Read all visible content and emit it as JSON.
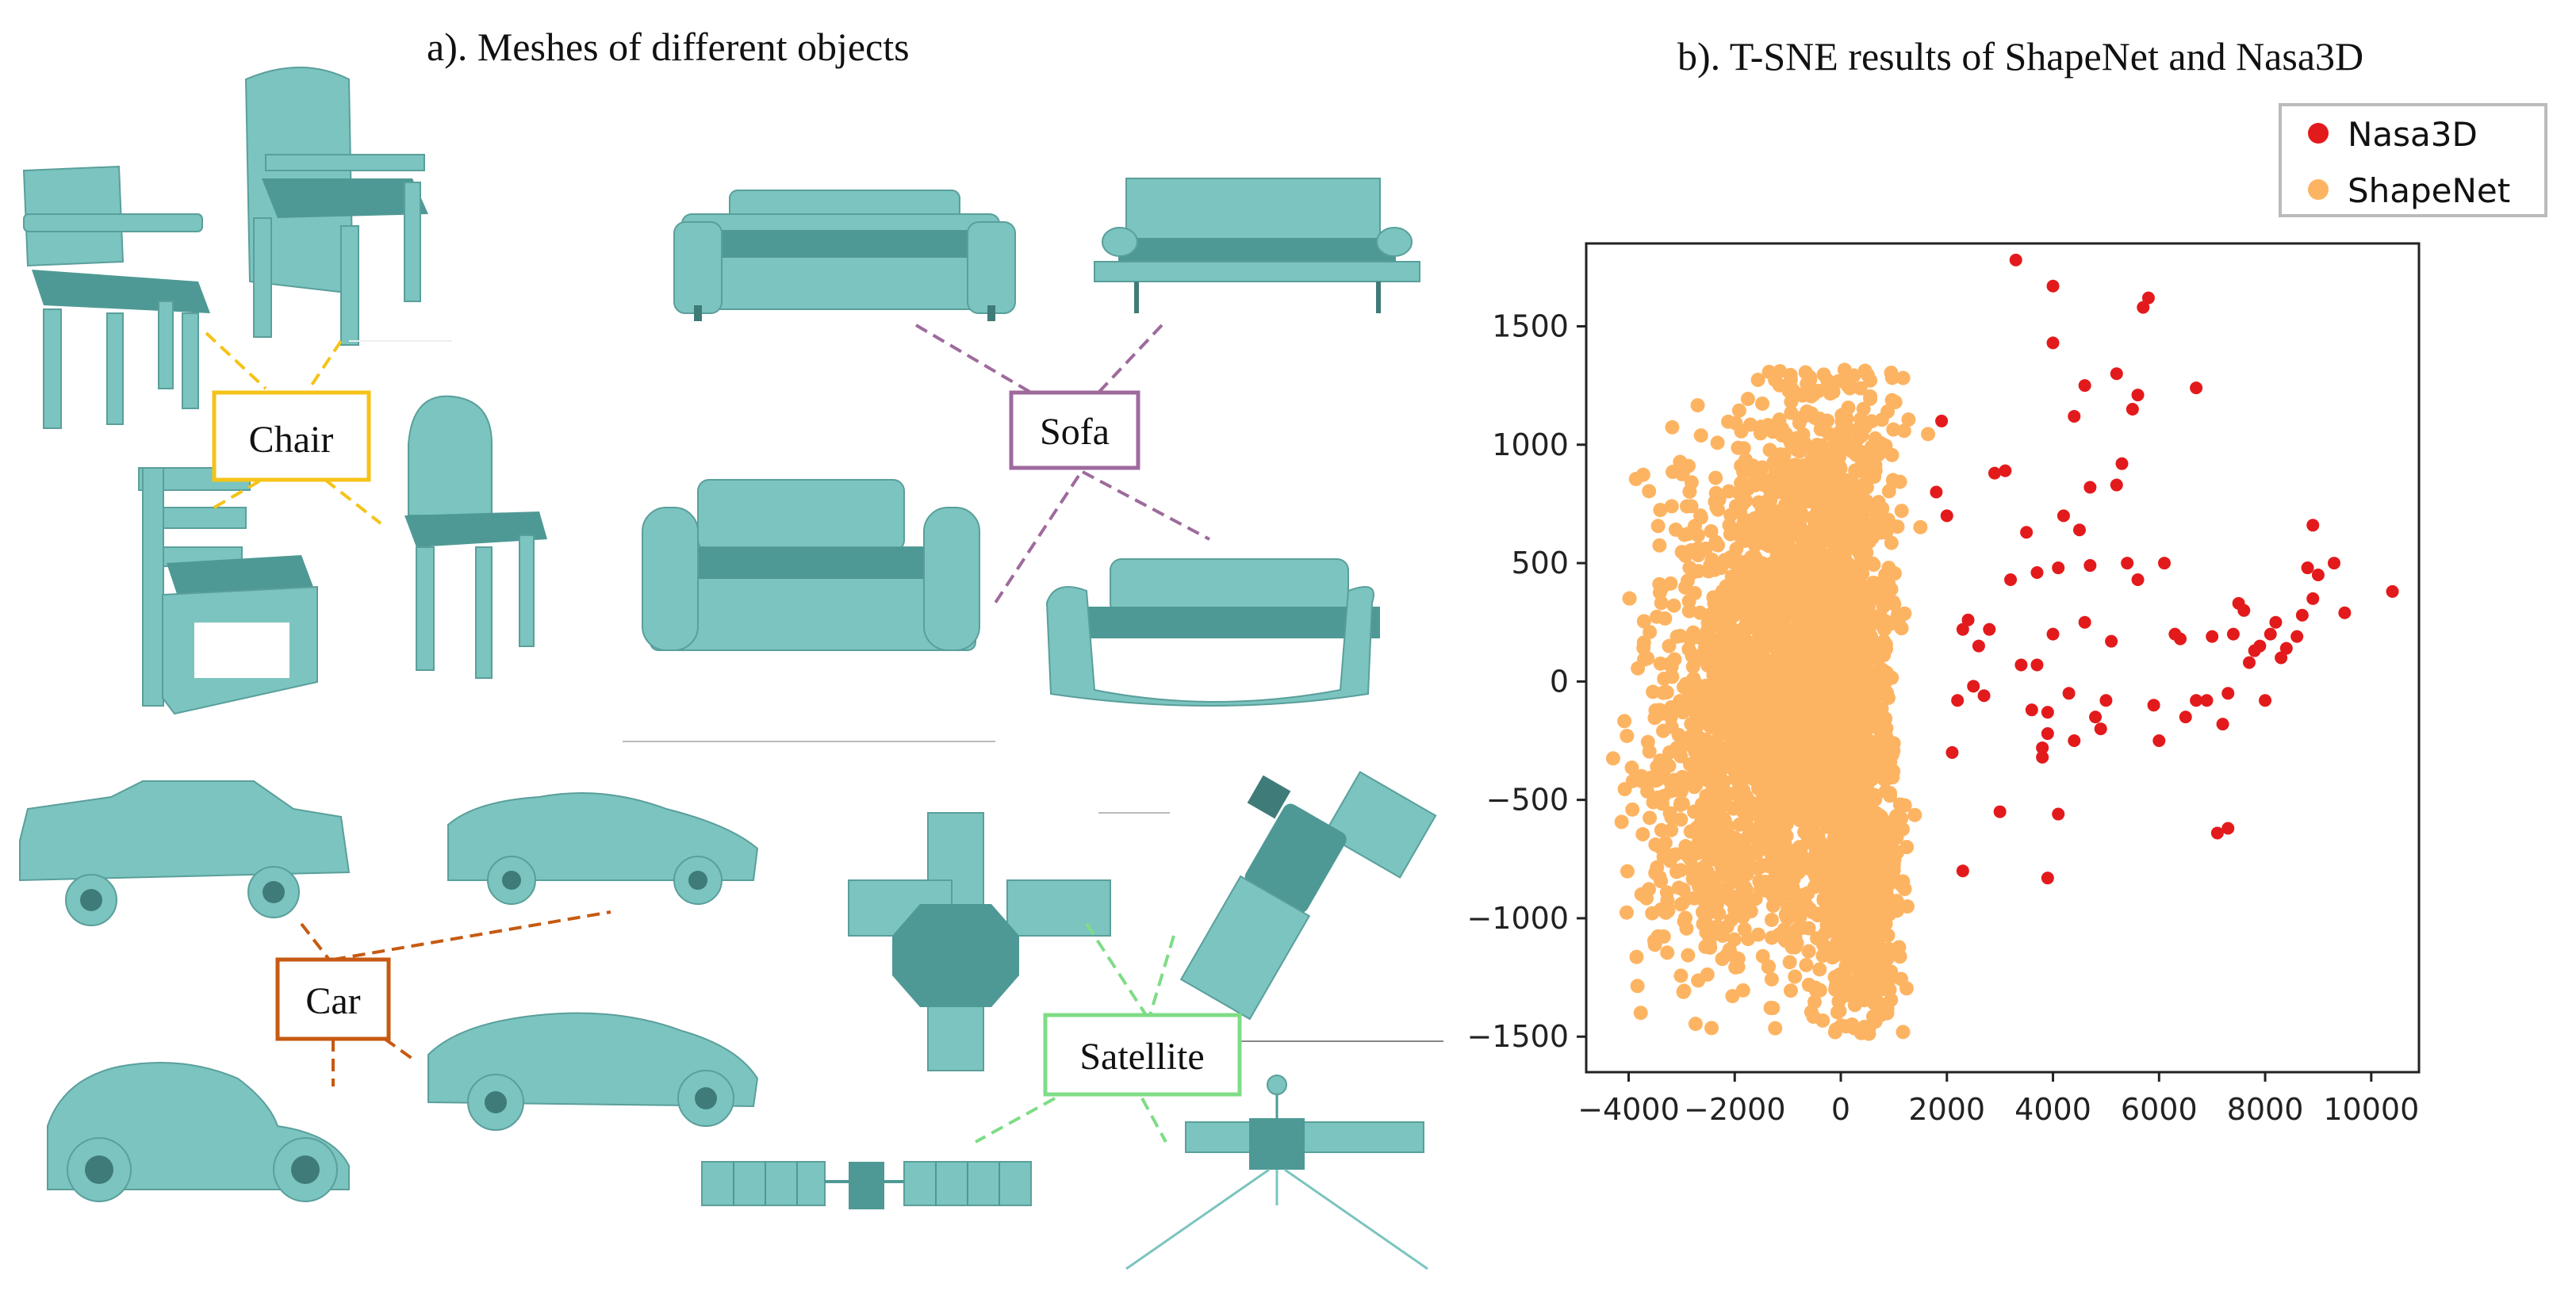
{
  "panel_a": {
    "caption": "a).  Meshes of different objects",
    "labels": {
      "chair": "Chair",
      "sofa": "Sofa",
      "car": "Car",
      "satellite": "Satellite"
    },
    "colors": {
      "mesh": "#7bc4c0",
      "mesh_dark": "#4e9995",
      "chair": "#f5c318",
      "sofa": "#9e6a9c",
      "car": "#c65a12",
      "satellite": "#7fdc86"
    }
  },
  "panel_b": {
    "caption": "b). T-SNE results of ShapeNet and Nasa3D"
  },
  "chart_data": {
    "type": "scatter",
    "title": "b). T-SNE results of ShapeNet and Nasa3D",
    "xlabel": "",
    "ylabel": "",
    "xlim": [
      -4800,
      10900
    ],
    "ylim": [
      -1650,
      1850
    ],
    "xticks": [
      -4000,
      -2000,
      0,
      2000,
      4000,
      6000,
      8000,
      10000
    ],
    "yticks": [
      -1500,
      -1000,
      -500,
      0,
      500,
      1000,
      1500
    ],
    "xtick_labels": [
      "−4000",
      "−2000",
      "0",
      "2000",
      "4000",
      "6000",
      "8000",
      "10000"
    ],
    "ytick_labels": [
      "−1500",
      "−1000",
      "−500",
      "0",
      "500",
      "1000",
      "1500"
    ],
    "grid": false,
    "legend_position": "top-right",
    "series": [
      {
        "name": "Nasa3D",
        "color": "#e31a1c",
        "points": [
          [
            10400,
            380
          ],
          [
            9500,
            290
          ],
          [
            9300,
            500
          ],
          [
            9000,
            450
          ],
          [
            8900,
            660
          ],
          [
            8900,
            350
          ],
          [
            8800,
            480
          ],
          [
            8700,
            280
          ],
          [
            8600,
            190
          ],
          [
            8400,
            140
          ],
          [
            8300,
            100
          ],
          [
            8200,
            250
          ],
          [
            8100,
            200
          ],
          [
            8000,
            -80
          ],
          [
            7900,
            150
          ],
          [
            7800,
            130
          ],
          [
            7700,
            80
          ],
          [
            7600,
            300
          ],
          [
            7500,
            330
          ],
          [
            7400,
            200
          ],
          [
            7300,
            -50
          ],
          [
            7200,
            -180
          ],
          [
            7100,
            -640
          ],
          [
            7300,
            -620
          ],
          [
            7000,
            190
          ],
          [
            6900,
            -80
          ],
          [
            6700,
            1240
          ],
          [
            6500,
            -150
          ],
          [
            6400,
            180
          ],
          [
            6300,
            200
          ],
          [
            6100,
            500
          ],
          [
            6000,
            -250
          ],
          [
            5900,
            -100
          ],
          [
            5800,
            1620
          ],
          [
            5700,
            1580
          ],
          [
            5600,
            1210
          ],
          [
            5600,
            430
          ],
          [
            5500,
            1150
          ],
          [
            5400,
            500
          ],
          [
            5300,
            920
          ],
          [
            5200,
            1300
          ],
          [
            5200,
            830
          ],
          [
            5100,
            170
          ],
          [
            5000,
            -80
          ],
          [
            4900,
            -200
          ],
          [
            4800,
            -150
          ],
          [
            4700,
            820
          ],
          [
            4700,
            490
          ],
          [
            4600,
            1250
          ],
          [
            4600,
            250
          ],
          [
            4500,
            640
          ],
          [
            4400,
            1120
          ],
          [
            4300,
            -50
          ],
          [
            4200,
            700
          ],
          [
            4100,
            480
          ],
          [
            4100,
            -560
          ],
          [
            4000,
            1430
          ],
          [
            4000,
            1670
          ],
          [
            4000,
            200
          ],
          [
            3900,
            -130
          ],
          [
            3900,
            -220
          ],
          [
            3800,
            -280
          ],
          [
            3800,
            -320
          ],
          [
            3700,
            460
          ],
          [
            3700,
            70
          ],
          [
            3600,
            -120
          ],
          [
            3500,
            630
          ],
          [
            3400,
            70
          ],
          [
            3300,
            1780
          ],
          [
            3200,
            430
          ],
          [
            3100,
            890
          ],
          [
            3000,
            -550
          ],
          [
            2900,
            880
          ],
          [
            2800,
            220
          ],
          [
            2700,
            -60
          ],
          [
            2600,
            150
          ],
          [
            2500,
            -20
          ],
          [
            2400,
            260
          ],
          [
            2300,
            -800
          ],
          [
            2300,
            220
          ],
          [
            2200,
            -80
          ],
          [
            2100,
            -300
          ],
          [
            2000,
            700
          ],
          [
            1900,
            1100
          ],
          [
            1800,
            800
          ],
          [
            3900,
            -830
          ],
          [
            4400,
            -250
          ],
          [
            6700,
            -80
          ]
        ]
      },
      {
        "name": "ShapeNet",
        "color": "#fdb462",
        "distribution": "dense cloud, x approx -4400 to 2300, y approx -1500 to 1320"
      }
    ]
  }
}
